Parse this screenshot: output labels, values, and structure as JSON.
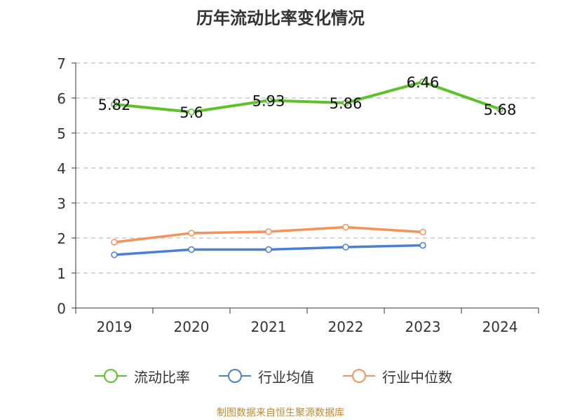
{
  "title": "历年流动比率变化情况",
  "source": "制图数据来自恒生聚源数据库",
  "chart_data": {
    "type": "line",
    "title": "历年流动比率变化情况",
    "categories": [
      "2019",
      "2020",
      "2021",
      "2022",
      "2023",
      "2024"
    ],
    "ylim": [
      0,
      7
    ],
    "yticks": [
      "0",
      "1",
      "2",
      "3",
      "4",
      "5",
      "6",
      "7"
    ],
    "grid": true,
    "legend_position": "bottom",
    "series": [
      {
        "name": "流动比率",
        "color": "#5cc22a",
        "values": [
          5.82,
          5.6,
          5.93,
          5.86,
          6.46,
          5.68
        ],
        "labels": [
          "5.82",
          "5.6",
          "5.93",
          "5.86",
          "6.46",
          "5.68"
        ]
      },
      {
        "name": "行业均值",
        "color": "#4a7fd6",
        "values": [
          1.52,
          1.67,
          1.67,
          1.74,
          1.79,
          null
        ]
      },
      {
        "name": "行业中位数",
        "color": "#f5915a",
        "values": [
          1.88,
          2.14,
          2.18,
          2.31,
          2.17,
          null
        ]
      }
    ]
  }
}
